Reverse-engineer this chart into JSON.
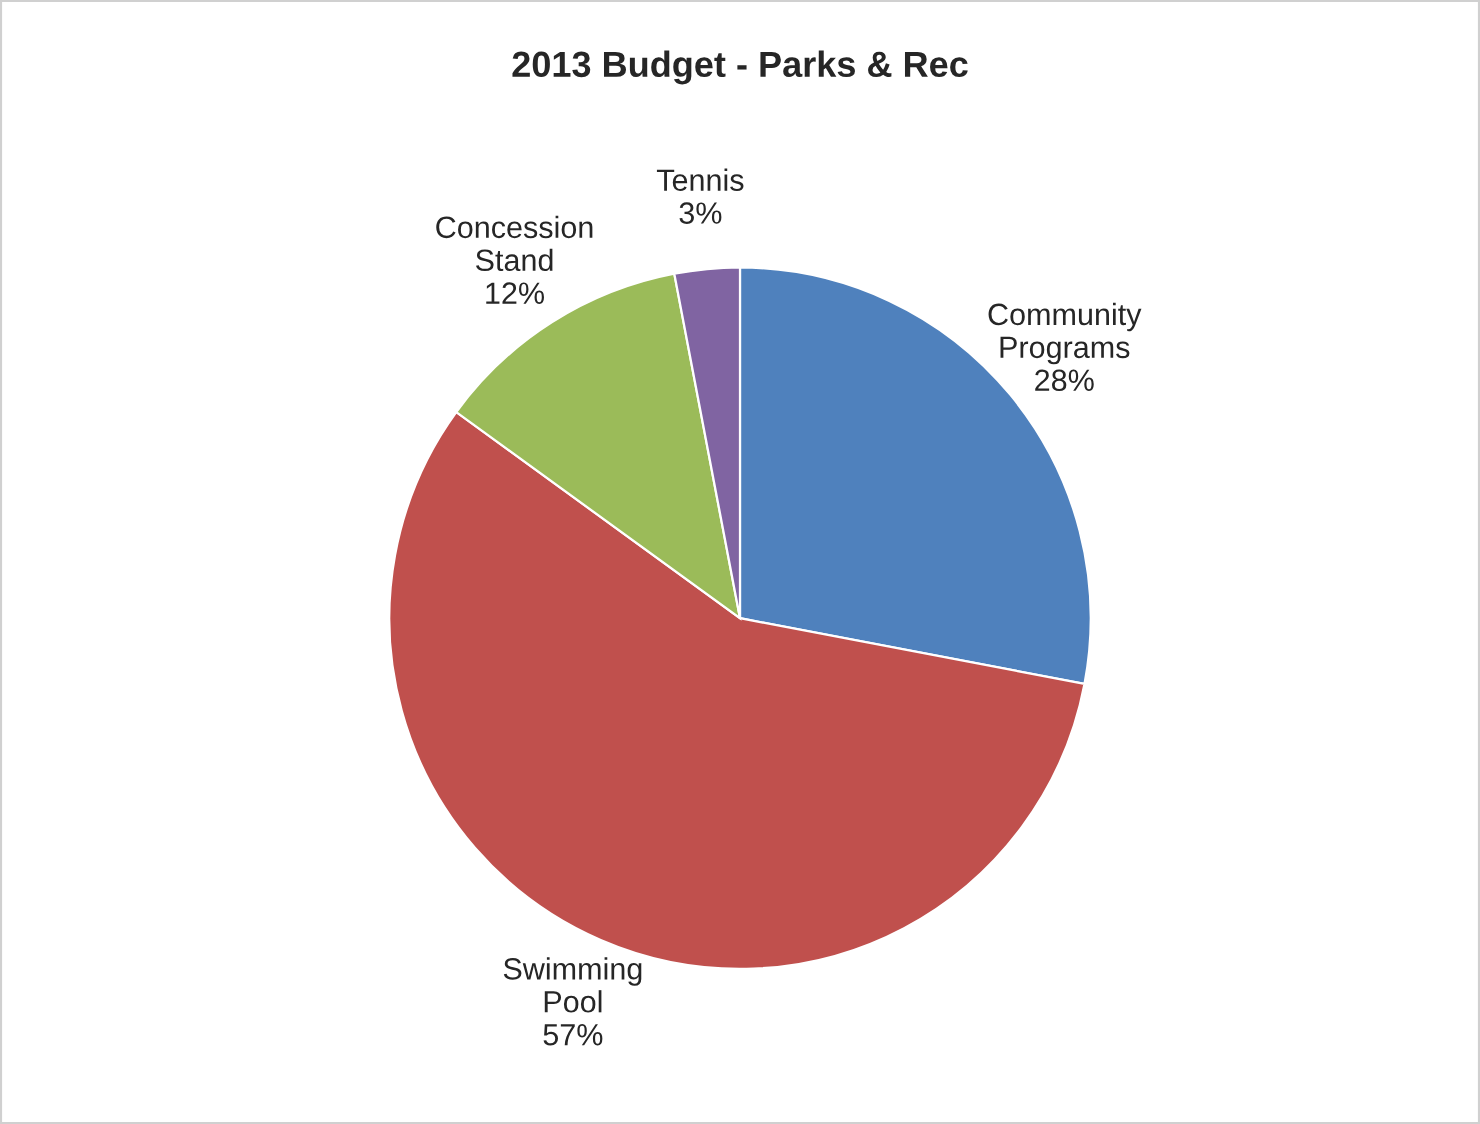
{
  "chart_data": {
    "type": "pie",
    "title": "2013 Budget - Parks & Rec",
    "categories": [
      "Community\nPrograms",
      "Swimming\nPool",
      "Concession\nStand",
      "Tennis"
    ],
    "values": [
      28,
      57,
      12,
      3
    ],
    "value_labels": [
      "28%",
      "57%",
      "12%",
      "3%"
    ],
    "colors": [
      "#4f81bd",
      "#c0504d",
      "#9bbb59",
      "#8064a2"
    ],
    "legend": false
  }
}
